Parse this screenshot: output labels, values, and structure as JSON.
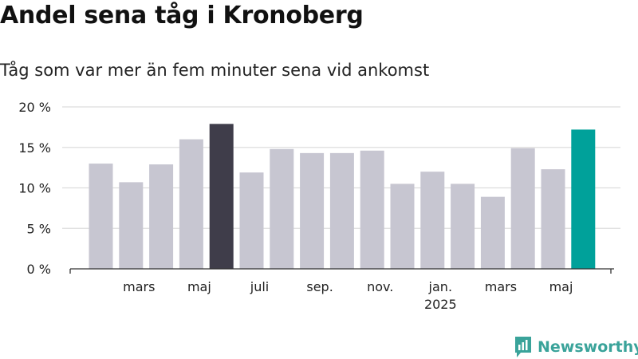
{
  "header": {
    "title": "Andel sena tåg i Kronoberg",
    "subtitle": "Tåg som var mer än fem minuter sena vid ankomst"
  },
  "brand": {
    "name": "Newsworthy"
  },
  "colors": {
    "bar": "#c7c6d1",
    "highlight_dark": "#3f3d4a",
    "highlight_accent": "#00a19a",
    "grid": "#dddddd",
    "axis": "#333333",
    "text": "#222222",
    "brand": "#3aa39a"
  },
  "chart_data": {
    "type": "bar",
    "categories": [
      "2024-02",
      "2024-03",
      "2024-04",
      "2024-05",
      "2024-06",
      "2024-07",
      "2024-08",
      "2024-09",
      "2024-10",
      "2024-11",
      "2024-12",
      "2025-01",
      "2025-02",
      "2025-03",
      "2025-04",
      "2025-05",
      "2025-06"
    ],
    "values": [
      13.0,
      10.7,
      12.9,
      16.0,
      17.9,
      11.9,
      14.8,
      14.3,
      14.3,
      14.6,
      10.5,
      12.0,
      10.5,
      8.9,
      14.9,
      12.3,
      17.2
    ],
    "highlight": {
      "2024-06": "highlight_dark",
      "2025-06": "highlight_accent"
    },
    "y_ticks": [
      {
        "value": 0,
        "label": "0 %"
      },
      {
        "value": 5,
        "label": "5 %"
      },
      {
        "value": 10,
        "label": "10 %"
      },
      {
        "value": 15,
        "label": "15 %"
      },
      {
        "value": 20,
        "label": "20 %"
      }
    ],
    "x_labels": [
      {
        "at": "2024-03",
        "label": "mars"
      },
      {
        "at": "2024-05",
        "label": "maj"
      },
      {
        "at": "2024-07",
        "label": "juli"
      },
      {
        "at": "2024-09",
        "label": "sep."
      },
      {
        "at": "2024-11",
        "label": "nov."
      },
      {
        "at": "2025-01",
        "label": "jan.",
        "sublabel": "2025"
      },
      {
        "at": "2025-03",
        "label": "mars"
      },
      {
        "at": "2025-05",
        "label": "maj"
      }
    ],
    "ylim": [
      0,
      20
    ],
    "grid": true,
    "legend": "none"
  }
}
